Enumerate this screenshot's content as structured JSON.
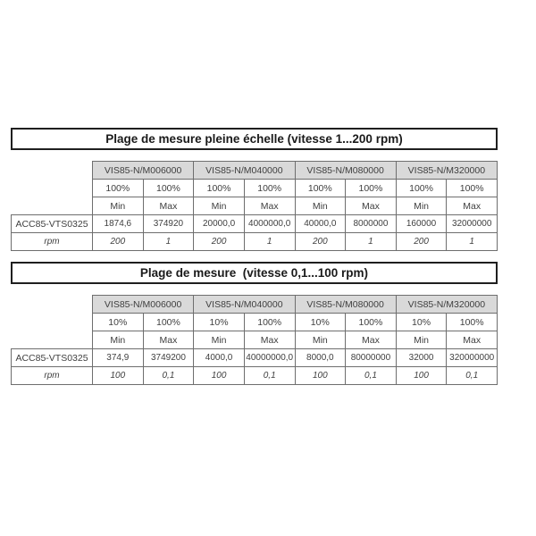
{
  "colors": {
    "header_bg": "#d9d9d9",
    "cell_border": "#6e6e6e",
    "title_border": "#1f1f1f",
    "text": "#3f3f3f",
    "background": "#ffffff"
  },
  "tables": [
    {
      "title": "Plage de mesure pleine échelle (vitesse 1...200 rpm)",
      "models": [
        "VIS85-N/M006000",
        "VIS85-N/M040000",
        "VIS85-N/M080000",
        "VIS85-N/M320000"
      ],
      "percent_row": [
        "100%",
        "100%",
        "100%",
        "100%",
        "100%",
        "100%",
        "100%",
        "100%"
      ],
      "minmax_row": [
        "Min",
        "Max",
        "Min",
        "Max",
        "Min",
        "Max",
        "Min",
        "Max"
      ],
      "device_label": "ACC85-VTS0325",
      "device_values": [
        "1874,6",
        "374920",
        "20000,0",
        "4000000,0",
        "40000,0",
        "8000000",
        "160000",
        "32000000"
      ],
      "rpm_label": "rpm",
      "rpm_values": [
        "200",
        "1",
        "200",
        "1",
        "200",
        "1",
        "200",
        "1"
      ]
    },
    {
      "title": "Plage de mesure  (vitesse 0,1...100 rpm)",
      "models": [
        "VIS85-N/M006000",
        "VIS85-N/M040000",
        "VIS85-N/M080000",
        "VIS85-N/M320000"
      ],
      "percent_row": [
        "10%",
        "100%",
        "10%",
        "100%",
        "10%",
        "100%",
        "10%",
        "100%"
      ],
      "minmax_row": [
        "Min",
        "Max",
        "Min",
        "Max",
        "Min",
        "Max",
        "Min",
        "Max"
      ],
      "device_label": "ACC85-VTS0325",
      "device_values": [
        "374,9",
        "3749200",
        "4000,0",
        "40000000,0",
        "8000,0",
        "80000000",
        "32000",
        "320000000"
      ],
      "rpm_label": "rpm",
      "rpm_values": [
        "100",
        "0,1",
        "100",
        "0,1",
        "100",
        "0,1",
        "100",
        "0,1"
      ]
    }
  ]
}
